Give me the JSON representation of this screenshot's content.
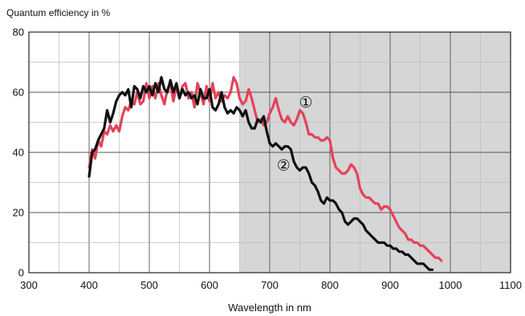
{
  "chart_data": {
    "type": "line",
    "title": "Quantum efficiency in %",
    "xlabel": "Wavelength in nm",
    "ylabel": "",
    "xlim": [
      300,
      1100
    ],
    "ylim": [
      0,
      80
    ],
    "x_ticks": [
      300,
      400,
      500,
      600,
      700,
      800,
      900,
      1000,
      1100
    ],
    "y_ticks": [
      0,
      20,
      40,
      60,
      80
    ],
    "x_minor_grid_step": 50,
    "y_minor_grid_step": 10,
    "grid": true,
    "shaded_region": {
      "x_from": 650,
      "x_to": 1100,
      "color": "#d6d6d6"
    },
    "colors": {
      "series_1": "#e5425a",
      "series_2": "#111111",
      "grid": "#bdbdbd",
      "axis": "#222222"
    },
    "series": [
      {
        "name": "①",
        "color": "#e5425a",
        "points": [
          [
            400,
            35
          ],
          [
            405,
            41
          ],
          [
            410,
            38
          ],
          [
            415,
            44
          ],
          [
            420,
            42
          ],
          [
            425,
            47
          ],
          [
            430,
            46
          ],
          [
            435,
            49
          ],
          [
            440,
            47
          ],
          [
            445,
            49
          ],
          [
            450,
            47
          ],
          [
            455,
            52
          ],
          [
            460,
            55
          ],
          [
            465,
            54
          ],
          [
            470,
            57
          ],
          [
            475,
            56
          ],
          [
            480,
            60
          ],
          [
            485,
            56
          ],
          [
            490,
            57
          ],
          [
            495,
            63
          ],
          [
            500,
            58
          ],
          [
            505,
            62
          ],
          [
            510,
            58
          ],
          [
            515,
            63
          ],
          [
            520,
            59
          ],
          [
            525,
            56
          ],
          [
            530,
            61
          ],
          [
            535,
            63
          ],
          [
            540,
            57
          ],
          [
            545,
            62
          ],
          [
            550,
            58
          ],
          [
            555,
            62
          ],
          [
            560,
            63
          ],
          [
            565,
            58
          ],
          [
            570,
            60
          ],
          [
            575,
            55
          ],
          [
            580,
            63
          ],
          [
            585,
            60
          ],
          [
            590,
            56
          ],
          [
            595,
            62
          ],
          [
            600,
            57
          ],
          [
            605,
            63
          ],
          [
            610,
            58
          ],
          [
            615,
            60
          ],
          [
            620,
            57
          ],
          [
            625,
            59
          ],
          [
            630,
            58
          ],
          [
            635,
            60
          ],
          [
            640,
            65
          ],
          [
            645,
            63
          ],
          [
            650,
            58
          ],
          [
            655,
            56
          ],
          [
            660,
            57
          ],
          [
            665,
            61
          ],
          [
            670,
            58
          ],
          [
            675,
            54
          ],
          [
            680,
            50
          ],
          [
            685,
            51
          ],
          [
            690,
            49
          ],
          [
            695,
            50
          ],
          [
            700,
            53
          ],
          [
            705,
            55
          ],
          [
            710,
            58
          ],
          [
            715,
            54
          ],
          [
            720,
            51
          ],
          [
            725,
            50
          ],
          [
            730,
            52
          ],
          [
            735,
            50
          ],
          [
            740,
            49
          ],
          [
            745,
            51
          ],
          [
            750,
            54
          ],
          [
            755,
            53
          ],
          [
            760,
            50
          ],
          [
            765,
            46
          ],
          [
            770,
            46
          ],
          [
            775,
            45
          ],
          [
            780,
            45
          ],
          [
            785,
            44
          ],
          [
            790,
            44
          ],
          [
            795,
            45
          ],
          [
            800,
            44
          ],
          [
            805,
            38
          ],
          [
            810,
            35
          ],
          [
            815,
            34
          ],
          [
            820,
            33
          ],
          [
            825,
            33
          ],
          [
            830,
            34
          ],
          [
            835,
            36
          ],
          [
            840,
            35
          ],
          [
            845,
            33
          ],
          [
            850,
            28
          ],
          [
            855,
            26
          ],
          [
            860,
            25
          ],
          [
            865,
            25
          ],
          [
            870,
            24
          ],
          [
            875,
            23
          ],
          [
            880,
            23
          ],
          [
            885,
            21
          ],
          [
            890,
            22
          ],
          [
            895,
            22
          ],
          [
            900,
            21
          ],
          [
            905,
            19
          ],
          [
            910,
            17
          ],
          [
            915,
            15
          ],
          [
            920,
            14
          ],
          [
            925,
            13
          ],
          [
            930,
            11
          ],
          [
            935,
            11
          ],
          [
            940,
            10
          ],
          [
            945,
            10
          ],
          [
            950,
            9
          ],
          [
            955,
            9
          ],
          [
            960,
            8
          ],
          [
            965,
            7
          ],
          [
            970,
            6
          ],
          [
            975,
            5
          ],
          [
            980,
            5
          ],
          [
            985,
            4
          ]
        ]
      },
      {
        "name": "②",
        "color": "#111111",
        "points": [
          [
            400,
            32
          ],
          [
            405,
            40
          ],
          [
            410,
            41
          ],
          [
            415,
            44
          ],
          [
            420,
            46
          ],
          [
            425,
            48
          ],
          [
            430,
            54
          ],
          [
            435,
            50
          ],
          [
            440,
            53
          ],
          [
            445,
            57
          ],
          [
            450,
            59
          ],
          [
            455,
            60
          ],
          [
            460,
            59
          ],
          [
            465,
            61
          ],
          [
            470,
            55
          ],
          [
            475,
            62
          ],
          [
            480,
            61
          ],
          [
            485,
            58
          ],
          [
            490,
            62
          ],
          [
            495,
            60
          ],
          [
            500,
            62
          ],
          [
            505,
            59
          ],
          [
            510,
            63
          ],
          [
            515,
            60
          ],
          [
            520,
            65
          ],
          [
            525,
            61
          ],
          [
            530,
            60
          ],
          [
            535,
            64
          ],
          [
            540,
            60
          ],
          [
            545,
            63
          ],
          [
            550,
            58
          ],
          [
            555,
            61
          ],
          [
            560,
            59
          ],
          [
            565,
            60
          ],
          [
            570,
            58
          ],
          [
            575,
            59
          ],
          [
            580,
            56
          ],
          [
            585,
            61
          ],
          [
            590,
            58
          ],
          [
            595,
            58
          ],
          [
            600,
            61
          ],
          [
            605,
            55
          ],
          [
            610,
            54
          ],
          [
            615,
            56
          ],
          [
            620,
            60
          ],
          [
            625,
            55
          ],
          [
            630,
            53
          ],
          [
            635,
            54
          ],
          [
            640,
            53
          ],
          [
            645,
            55
          ],
          [
            650,
            54
          ],
          [
            655,
            52
          ],
          [
            660,
            54
          ],
          [
            665,
            50
          ],
          [
            670,
            48
          ],
          [
            675,
            48
          ],
          [
            680,
            51
          ],
          [
            685,
            50
          ],
          [
            690,
            52
          ],
          [
            695,
            47
          ],
          [
            700,
            43
          ],
          [
            705,
            42
          ],
          [
            710,
            43
          ],
          [
            715,
            42
          ],
          [
            720,
            41
          ],
          [
            725,
            42
          ],
          [
            730,
            42
          ],
          [
            735,
            41
          ],
          [
            740,
            37
          ],
          [
            745,
            35
          ],
          [
            750,
            34
          ],
          [
            755,
            35
          ],
          [
            760,
            35
          ],
          [
            765,
            33
          ],
          [
            770,
            30
          ],
          [
            775,
            29
          ],
          [
            780,
            27
          ],
          [
            785,
            24
          ],
          [
            790,
            23
          ],
          [
            795,
            25
          ],
          [
            800,
            24
          ],
          [
            805,
            24
          ],
          [
            810,
            23
          ],
          [
            815,
            21
          ],
          [
            820,
            20
          ],
          [
            825,
            17
          ],
          [
            830,
            16
          ],
          [
            835,
            17
          ],
          [
            840,
            18
          ],
          [
            845,
            18
          ],
          [
            850,
            17
          ],
          [
            855,
            16
          ],
          [
            860,
            14
          ],
          [
            865,
            13
          ],
          [
            870,
            12
          ],
          [
            875,
            11
          ],
          [
            880,
            10
          ],
          [
            885,
            10
          ],
          [
            890,
            10
          ],
          [
            895,
            9
          ],
          [
            900,
            9
          ],
          [
            905,
            8
          ],
          [
            910,
            8
          ],
          [
            915,
            7
          ],
          [
            920,
            7
          ],
          [
            925,
            6
          ],
          [
            930,
            6
          ],
          [
            935,
            5
          ],
          [
            940,
            4
          ],
          [
            945,
            3
          ],
          [
            950,
            3
          ],
          [
            955,
            3
          ],
          [
            960,
            2
          ],
          [
            965,
            1
          ],
          [
            970,
            1
          ]
        ]
      }
    ],
    "annotations": [
      {
        "text": "①",
        "series": 0,
        "x": 760,
        "y": 55
      },
      {
        "text": "②",
        "series": 1,
        "x": 723,
        "y": 34
      }
    ]
  }
}
